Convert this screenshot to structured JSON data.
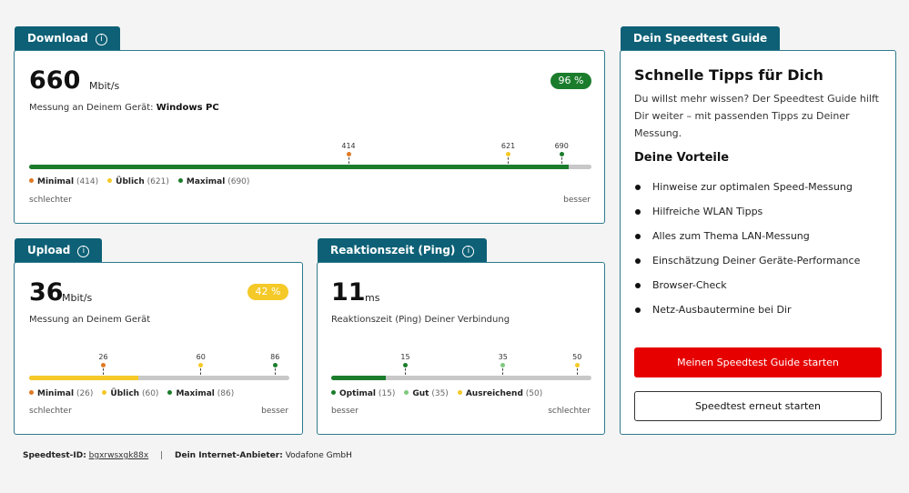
{
  "colors": {
    "teal": "#0d6076",
    "green": "#1b7d2c",
    "yellow": "#f5c928",
    "orange": "#e07a23",
    "red": "#e60000",
    "gray_track": "#c8c8c8"
  },
  "download": {
    "tab_label": "Download",
    "info_icon": "ⓘ",
    "value": "660",
    "unit": "Mbit/s",
    "device_prefix": "Messung an Deinem Gerät:",
    "device_name": "Windows PC",
    "badge": "96 %",
    "fill_fraction": 0.96,
    "markers": [
      {
        "label": "414",
        "fraction": 0.568,
        "color": "#e07a23"
      },
      {
        "label": "621",
        "fraction": 0.852,
        "color": "#f5c928"
      },
      {
        "label": "690",
        "fraction": 0.947,
        "color": "#1b7d2c"
      }
    ],
    "legend": [
      {
        "name": "Minimal",
        "value": "(414)",
        "color": "#e07a23"
      },
      {
        "name": "Üblich",
        "value": "(621)",
        "color": "#f5c928"
      },
      {
        "name": "Maximal",
        "value": "(690)",
        "color": "#1b7d2c"
      }
    ],
    "scale_left": "schlechter",
    "scale_right": "besser"
  },
  "upload": {
    "tab_label": "Upload",
    "info_icon": "ⓘ",
    "value": "36",
    "unit": "Mbit/s",
    "device_text": "Messung an Deinem Gerät",
    "badge": "42 %",
    "fill_fraction": 0.42,
    "markers": [
      {
        "label": "26",
        "fraction": 0.285,
        "color": "#e07a23"
      },
      {
        "label": "60",
        "fraction": 0.66,
        "color": "#f5c928"
      },
      {
        "label": "86",
        "fraction": 0.945,
        "color": "#1b7d2c"
      }
    ],
    "legend": [
      {
        "name": "Minimal",
        "value": "(26)",
        "color": "#e07a23"
      },
      {
        "name": "Üblich",
        "value": "(60)",
        "color": "#f5c928"
      },
      {
        "name": "Maximal",
        "value": "(86)",
        "color": "#1b7d2c"
      }
    ],
    "scale_left": "schlechter",
    "scale_right": "besser"
  },
  "ping": {
    "tab_label": "Reaktionszeit (Ping)",
    "info_icon": "ⓘ",
    "value": "11",
    "unit": "ms",
    "device_text": "Reaktionszeit (Ping) Deiner Verbindung",
    "fill_fraction": 0.21,
    "markers": [
      {
        "label": "15",
        "fraction": 0.285,
        "color": "#1b7d2c"
      },
      {
        "label": "35",
        "fraction": 0.66,
        "color": "#7fc97f"
      },
      {
        "label": "50",
        "fraction": 0.945,
        "color": "#f5c928"
      }
    ],
    "legend": [
      {
        "name": "Optimal",
        "value": "(15)",
        "color": "#1b7d2c"
      },
      {
        "name": "Gut",
        "value": "(35)",
        "color": "#7fc97f"
      },
      {
        "name": "Ausreichend",
        "value": "(50)",
        "color": "#f5c928"
      }
    ],
    "scale_left": "besser",
    "scale_right": "schlechter"
  },
  "guide": {
    "tab_label": "Dein Speedtest Guide",
    "title": "Schnelle Tipps für Dich",
    "intro": "Du willst mehr wissen? Der Speedtest Guide hilft Dir weiter – mit passenden Tipps zu Deiner Messung.",
    "benefits_heading": "Deine Vorteile",
    "benefits": [
      "Hinweise zur optimalen Speed-Messung",
      "Hilfreiche WLAN Tipps",
      "Alles zum Thema LAN-Messung",
      "Einschätzung Deiner Geräte-Performance",
      "Browser-Check",
      "Netz-Ausbautermine bei Dir"
    ],
    "primary_button": "Meinen Speedtest Guide starten",
    "secondary_button": "Speedtest erneut starten"
  },
  "footer": {
    "id_label": "Speedtest-ID:",
    "id_value": "bgxrwsxgk88x",
    "separator": "|",
    "provider_label": "Dein Internet-Anbieter:",
    "provider_value": "Vodafone GmbH"
  }
}
